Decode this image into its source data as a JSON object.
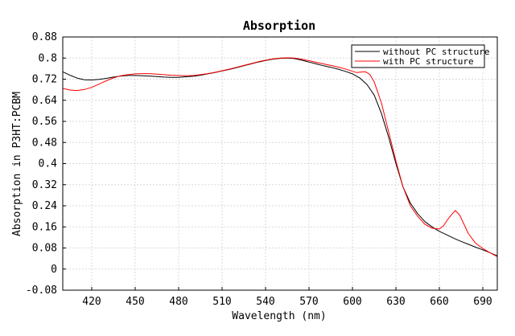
{
  "chart_data": {
    "type": "line",
    "title": "Absorption",
    "xlabel": "Wavelength (nm)",
    "ylabel": "Absorption in P3HT:PCBM",
    "xlim": [
      400,
      700
    ],
    "ylim": [
      -0.08,
      0.88
    ],
    "xticks": [
      420,
      450,
      480,
      510,
      540,
      570,
      600,
      630,
      660,
      690
    ],
    "yticks": [
      -0.08,
      0,
      0.08,
      0.16,
      0.24,
      0.32,
      0.4,
      0.48,
      0.56,
      0.64,
      0.72,
      0.8,
      0.88
    ],
    "ytick_labels": [
      "-0.08",
      "0",
      "0.08",
      "0.16",
      "0.24",
      "0.32",
      "0.4",
      "0.48",
      "0.56",
      "0.64",
      "0.72",
      "0.8",
      "0.88"
    ],
    "grid": true,
    "legend_position": "top-right",
    "series": [
      {
        "name": "without PC structure",
        "color": "#000000",
        "points": [
          [
            400,
            0.748
          ],
          [
            405,
            0.735
          ],
          [
            410,
            0.724
          ],
          [
            415,
            0.718
          ],
          [
            420,
            0.717
          ],
          [
            425,
            0.719
          ],
          [
            430,
            0.723
          ],
          [
            435,
            0.728
          ],
          [
            440,
            0.732
          ],
          [
            445,
            0.734
          ],
          [
            450,
            0.734
          ],
          [
            455,
            0.733
          ],
          [
            460,
            0.732
          ],
          [
            465,
            0.73
          ],
          [
            470,
            0.728
          ],
          [
            475,
            0.727
          ],
          [
            480,
            0.727
          ],
          [
            485,
            0.729
          ],
          [
            490,
            0.731
          ],
          [
            495,
            0.735
          ],
          [
            500,
            0.74
          ],
          [
            505,
            0.745
          ],
          [
            510,
            0.751
          ],
          [
            515,
            0.757
          ],
          [
            520,
            0.764
          ],
          [
            525,
            0.771
          ],
          [
            530,
            0.778
          ],
          [
            535,
            0.785
          ],
          [
            540,
            0.791
          ],
          [
            545,
            0.796
          ],
          [
            550,
            0.799
          ],
          [
            555,
            0.8
          ],
          [
            560,
            0.798
          ],
          [
            565,
            0.792
          ],
          [
            570,
            0.785
          ],
          [
            575,
            0.778
          ],
          [
            580,
            0.771
          ],
          [
            585,
            0.765
          ],
          [
            590,
            0.758
          ],
          [
            595,
            0.75
          ],
          [
            600,
            0.74
          ],
          [
            605,
            0.725
          ],
          [
            610,
            0.7
          ],
          [
            615,
            0.66
          ],
          [
            620,
            0.59
          ],
          [
            625,
            0.5
          ],
          [
            630,
            0.4
          ],
          [
            635,
            0.31
          ],
          [
            640,
            0.25
          ],
          [
            645,
            0.21
          ],
          [
            650,
            0.18
          ],
          [
            655,
            0.16
          ],
          [
            660,
            0.143
          ],
          [
            665,
            0.13
          ],
          [
            670,
            0.117
          ],
          [
            675,
            0.105
          ],
          [
            680,
            0.094
          ],
          [
            685,
            0.083
          ],
          [
            690,
            0.073
          ],
          [
            695,
            0.062
          ],
          [
            700,
            0.05
          ]
        ]
      },
      {
        "name": "with PC structure",
        "color": "#ff0000",
        "points": [
          [
            400,
            0.685
          ],
          [
            405,
            0.679
          ],
          [
            410,
            0.677
          ],
          [
            415,
            0.681
          ],
          [
            420,
            0.689
          ],
          [
            425,
            0.701
          ],
          [
            430,
            0.714
          ],
          [
            435,
            0.725
          ],
          [
            440,
            0.733
          ],
          [
            445,
            0.737
          ],
          [
            450,
            0.74
          ],
          [
            455,
            0.741
          ],
          [
            460,
            0.741
          ],
          [
            465,
            0.739
          ],
          [
            470,
            0.737
          ],
          [
            475,
            0.735
          ],
          [
            480,
            0.734
          ],
          [
            485,
            0.733
          ],
          [
            490,
            0.734
          ],
          [
            495,
            0.737
          ],
          [
            500,
            0.741
          ],
          [
            505,
            0.746
          ],
          [
            510,
            0.752
          ],
          [
            515,
            0.758
          ],
          [
            520,
            0.765
          ],
          [
            525,
            0.772
          ],
          [
            530,
            0.779
          ],
          [
            535,
            0.786
          ],
          [
            540,
            0.792
          ],
          [
            545,
            0.797
          ],
          [
            550,
            0.8
          ],
          [
            555,
            0.801
          ],
          [
            560,
            0.8
          ],
          [
            565,
            0.796
          ],
          [
            570,
            0.79
          ],
          [
            575,
            0.784
          ],
          [
            580,
            0.778
          ],
          [
            585,
            0.772
          ],
          [
            590,
            0.766
          ],
          [
            595,
            0.759
          ],
          [
            600,
            0.75
          ],
          [
            603,
            0.745
          ],
          [
            606,
            0.747
          ],
          [
            609,
            0.748
          ],
          [
            612,
            0.738
          ],
          [
            615,
            0.71
          ],
          [
            620,
            0.63
          ],
          [
            625,
            0.52
          ],
          [
            630,
            0.41
          ],
          [
            635,
            0.31
          ],
          [
            640,
            0.24
          ],
          [
            645,
            0.2
          ],
          [
            650,
            0.17
          ],
          [
            655,
            0.155
          ],
          [
            660,
            0.152
          ],
          [
            663,
            0.165
          ],
          [
            666,
            0.19
          ],
          [
            669,
            0.21
          ],
          [
            671,
            0.222
          ],
          [
            674,
            0.205
          ],
          [
            677,
            0.17
          ],
          [
            680,
            0.135
          ],
          [
            685,
            0.098
          ],
          [
            690,
            0.078
          ],
          [
            695,
            0.062
          ],
          [
            700,
            0.047
          ]
        ]
      }
    ]
  }
}
